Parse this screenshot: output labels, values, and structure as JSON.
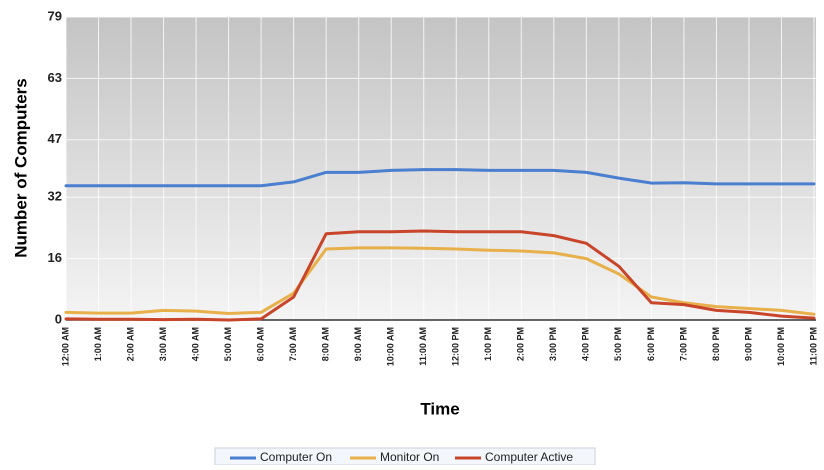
{
  "chart_data": {
    "type": "line",
    "x_label": "Time",
    "y_label": "Number of Computers",
    "categories": [
      "12:00 AM",
      "1:00 AM",
      "2:00 AM",
      "3:00 AM",
      "4:00 AM",
      "5:00 AM",
      "6:00 AM",
      "7:00 AM",
      "8:00 AM",
      "9:00 AM",
      "10:00 AM",
      "11:00 AM",
      "12:00 PM",
      "1:00 PM",
      "2:00 PM",
      "3:00 PM",
      "4:00 PM",
      "5:00 PM",
      "6:00 PM",
      "7:00 PM",
      "8:00 PM",
      "9:00 PM",
      "10:00 PM",
      "11:00 PM"
    ],
    "series": [
      {
        "name": "Computer On",
        "color": "#4a7fd0",
        "values": [
          35,
          35,
          35,
          35,
          35,
          35,
          35,
          36,
          38.5,
          38.5,
          39,
          39.2,
          39.2,
          39,
          39,
          39,
          38.5,
          37,
          35.7,
          35.8,
          35.5,
          35.5,
          35.5,
          35.5
        ]
      },
      {
        "name": "Monitor On",
        "color": "#e8b04a",
        "values": [
          2,
          1.8,
          1.8,
          2.5,
          2.3,
          1.7,
          2,
          7,
          18.5,
          18.8,
          18.8,
          18.7,
          18.5,
          18.2,
          18,
          17.5,
          16,
          12,
          6,
          4.5,
          3.5,
          3,
          2.5,
          1.5
        ]
      },
      {
        "name": "Computer Active",
        "color": "#c8452a",
        "values": [
          0.3,
          0.2,
          0.2,
          0.1,
          0.2,
          0,
          0.3,
          6,
          22.5,
          23,
          23,
          23.2,
          23,
          23,
          23,
          22,
          20,
          14,
          4.5,
          4,
          2.5,
          2,
          1,
          0.5
        ]
      }
    ],
    "ylim": [
      0,
      79
    ],
    "yticks": [
      0,
      16,
      32,
      47,
      63,
      79
    ],
    "grid": true,
    "legend": "bottom"
  }
}
